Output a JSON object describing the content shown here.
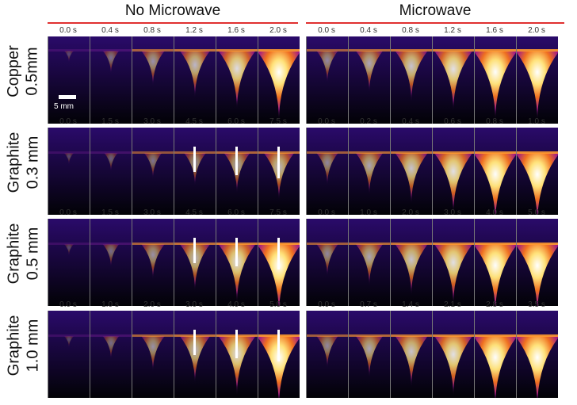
{
  "group_titles": [
    "No Microwave",
    "Microwave"
  ],
  "rows": [
    {
      "label_line1": "Copper",
      "label_line2": "0.5mm",
      "left_times": [
        "0.0 s",
        "0.4 s",
        "0.8 s",
        "1.2 s",
        "1.6 s",
        "2.0 s"
      ],
      "right_times": [
        "0.0 s",
        "0.4 s",
        "0.8 s",
        "1.2 s",
        "1.6 s",
        "2.0 s"
      ]
    },
    {
      "label_line1": "Graphite",
      "label_line2": "0.3 mm",
      "left_times": [
        "0.0 s",
        "1.5 s",
        "3.0 s",
        "4.5 s",
        "6.0 s",
        "7.5 s"
      ],
      "right_times": [
        "0.0 s",
        "0.2 s",
        "0.4 s",
        "0.6 s",
        "0.8 s",
        "1.0 s"
      ]
    },
    {
      "label_line1": "Graphite",
      "label_line2": "0.5 mm",
      "left_times": [
        "0.0 s",
        "1.5 s",
        "3.0 s",
        "4.5 s",
        "6.0 s",
        "7.5 s"
      ],
      "right_times": [
        "0.0 s",
        "1.0 s",
        "2.0 s",
        "3.0 s",
        "4.0 s",
        "5.0 s"
      ]
    },
    {
      "label_line1": "Graphite",
      "label_line2": "1.0 mm",
      "left_times": [
        "0.0 s",
        "1.0 s",
        "2.0 s",
        "3.0 s",
        "4.0 s",
        "5.0 s"
      ],
      "right_times": [
        "0.0 s",
        "0.7 s",
        "1.4 s",
        "2.1 s",
        "2.8 s",
        "3.5 s"
      ]
    }
  ],
  "scale_bar_label": "5 mm",
  "colors": {
    "accent_line": "#e03030",
    "background": "#ffffff"
  }
}
